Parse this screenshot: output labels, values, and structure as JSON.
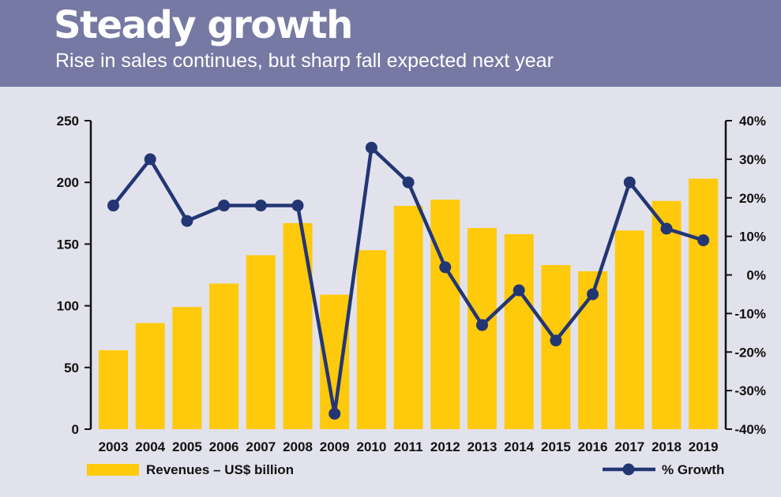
{
  "header": {
    "title": "Steady growth",
    "subtitle": "Rise in sales continues, but sharp fall expected next year"
  },
  "colors": {
    "header_bg": "#7679a3",
    "bar": "#ffc90c",
    "line": "#233674",
    "background": "#e2e2ec"
  },
  "chart_data": {
    "type": "bar",
    "title": "Steady growth",
    "subtitle": "Rise in sales continues, but sharp fall expected next year",
    "categories": [
      "2003",
      "2004",
      "2005",
      "2006",
      "2007",
      "2008",
      "2009",
      "2010",
      "2011",
      "2012",
      "2013",
      "2014",
      "2015",
      "2016",
      "2017",
      "2018",
      "2019"
    ],
    "series": [
      {
        "name": "Revenues – US$ billion",
        "type": "bar",
        "axis": "left",
        "values": [
          64,
          86,
          99,
          118,
          141,
          167,
          109,
          145,
          181,
          186,
          163,
          158,
          133,
          128,
          161,
          185,
          203
        ]
      },
      {
        "name": "% Growth",
        "type": "line",
        "axis": "right",
        "values": [
          18,
          30,
          14,
          18,
          18,
          18,
          -36,
          33,
          24,
          2,
          -13,
          -4,
          -17,
          -5,
          24,
          12,
          9
        ]
      }
    ],
    "left_axis": {
      "ylim": [
        0,
        250
      ],
      "ticks": [
        0,
        50,
        100,
        150,
        200,
        250
      ],
      "tick_labels": [
        "0",
        "50",
        "100",
        "150",
        "200",
        "250"
      ]
    },
    "right_axis": {
      "ylim": [
        -40,
        40
      ],
      "ticks": [
        -40,
        -30,
        -20,
        -10,
        0,
        10,
        20,
        30,
        40
      ],
      "tick_labels": [
        "-40%",
        "-30%",
        "-20%",
        "-10%",
        "0%",
        "10%",
        "20%",
        "30%",
        "40%"
      ]
    },
    "legend": [
      {
        "label": "Revenues – US$ billion",
        "kind": "bar",
        "position": "bottom-left"
      },
      {
        "label": "% Growth",
        "kind": "line",
        "position": "bottom-right"
      }
    ]
  }
}
